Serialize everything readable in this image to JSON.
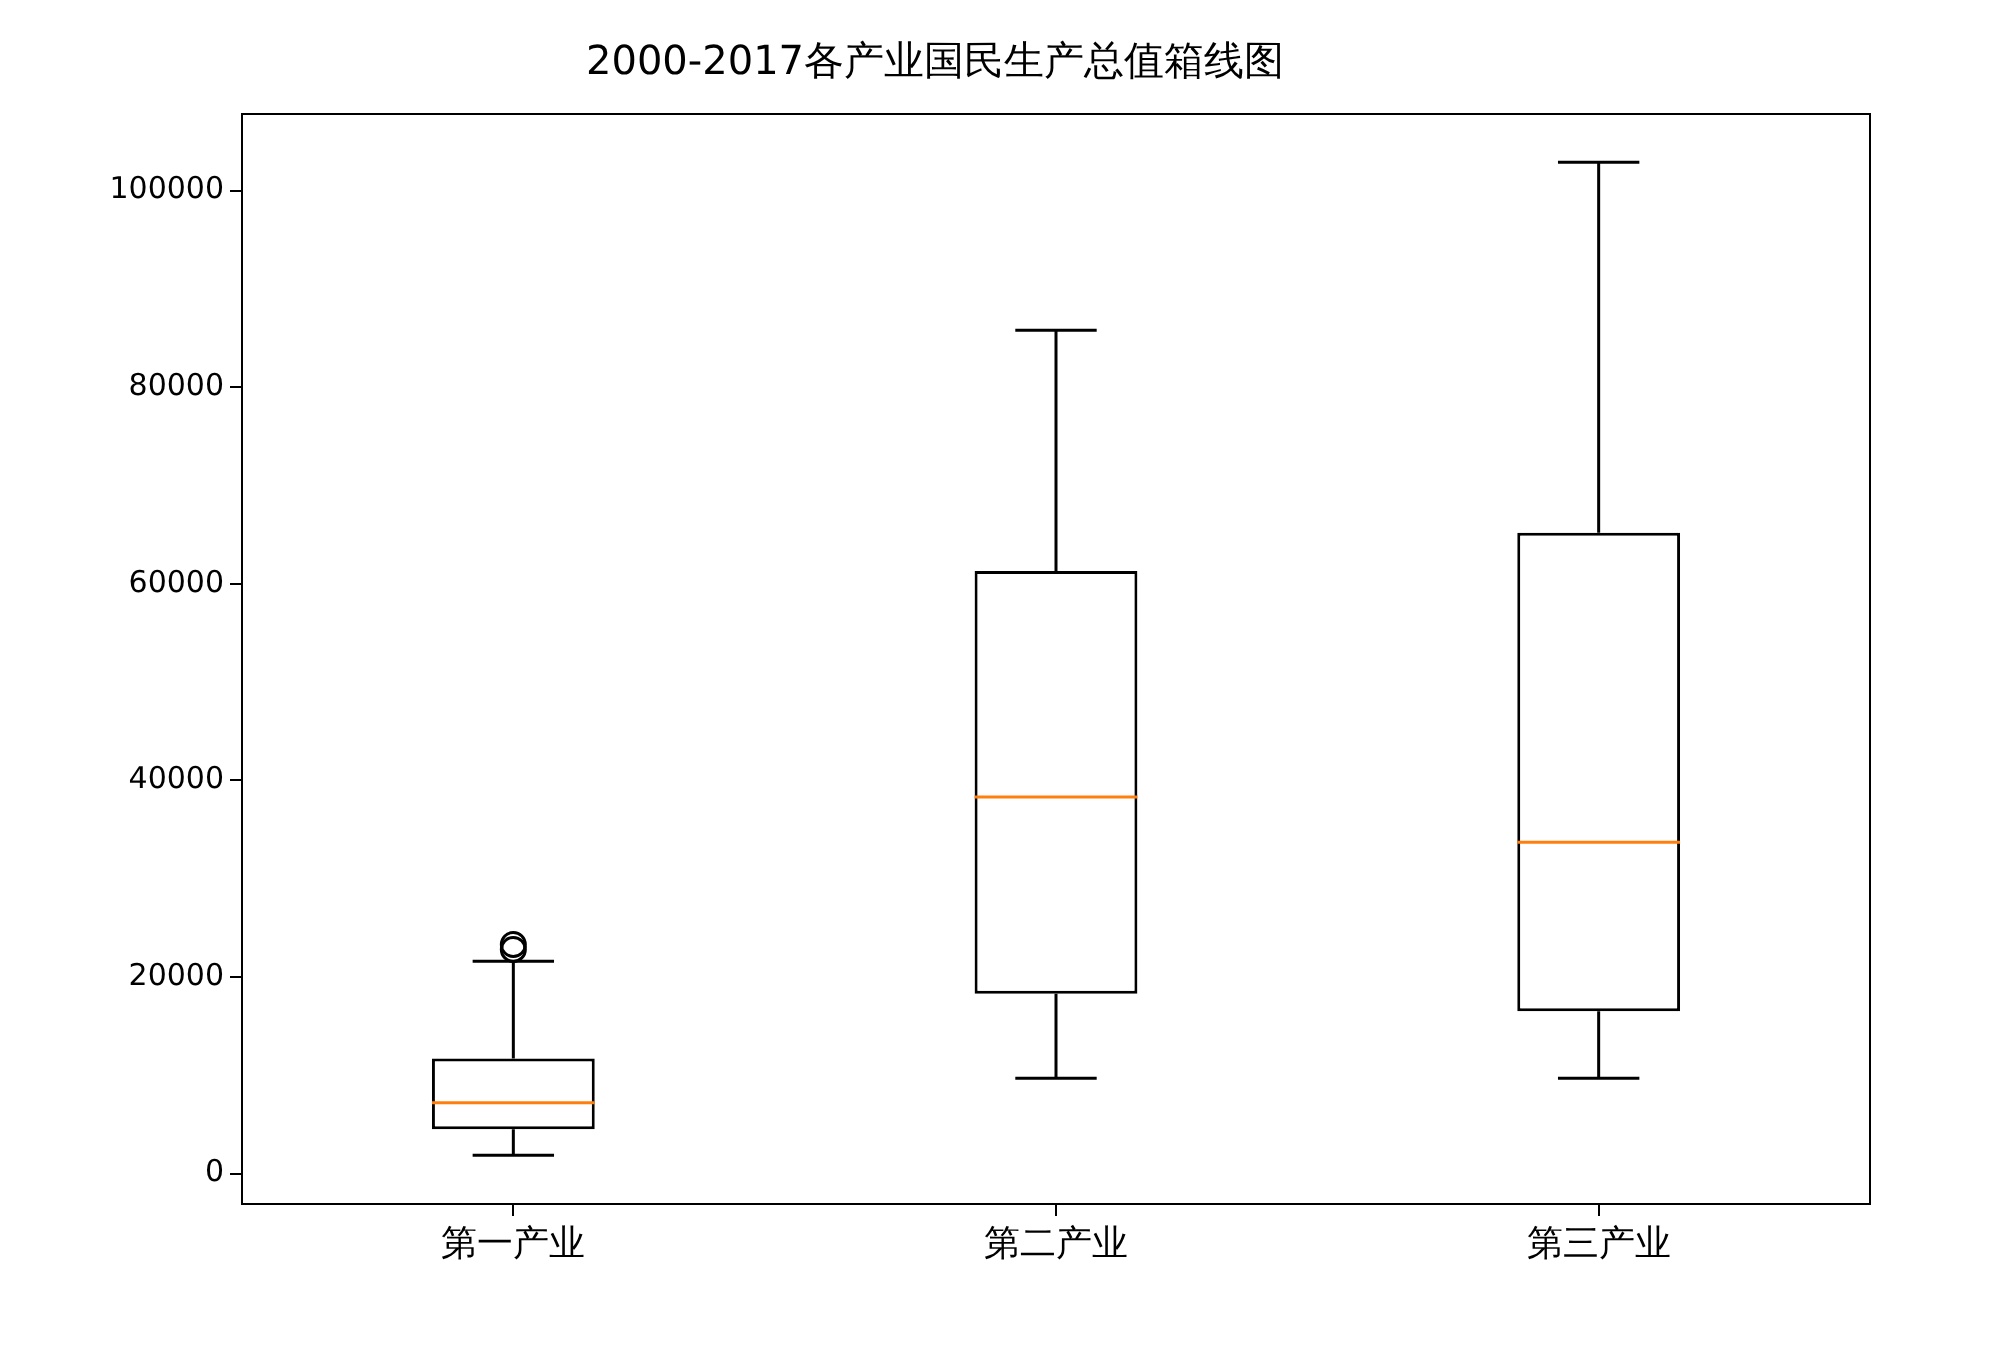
{
  "chart_data": {
    "type": "box",
    "title": "2000-2017各产业国民生产总值箱线图",
    "categories": [
      "第一产业",
      "第二产业",
      "第三产业"
    ],
    "boxes": [
      {
        "low": 1850,
        "q1": 4500,
        "median": 7200,
        "q3": 11700,
        "high": 21600,
        "outliers": [
          22800,
          23300
        ]
      },
      {
        "low": 9700,
        "q1": 18300,
        "median": 38300,
        "q3": 61300,
        "high": 85800
      },
      {
        "low": 9700,
        "q1": 16500,
        "median": 33700,
        "q3": 65200,
        "high": 102900
      }
    ],
    "color": "#000000",
    "ylim": [
      -3100,
      107800
    ],
    "yticks": [
      0,
      20000,
      40000,
      60000,
      80000,
      100000
    ],
    "grid": false,
    "legend": false
  }
}
